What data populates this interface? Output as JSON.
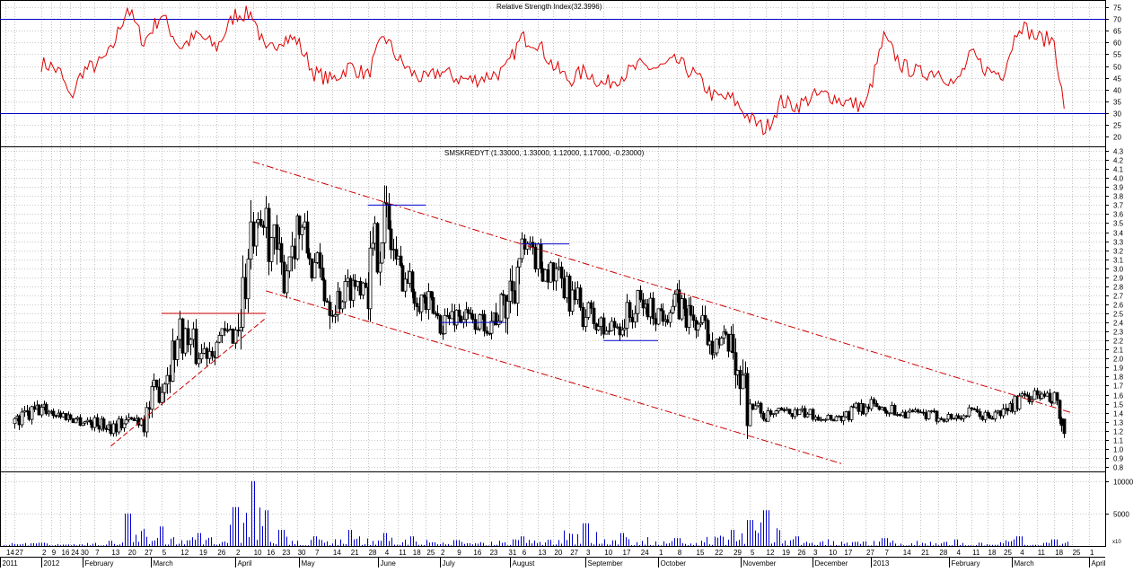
{
  "chart_data": [
    {
      "type": "line",
      "title": "Relative Strength Index(32.3996)",
      "ylim": [
        16,
        78
      ],
      "yticks": [
        20,
        25,
        30,
        35,
        40,
        45,
        50,
        55,
        60,
        65,
        70,
        75
      ],
      "reference_lines": [
        30,
        70
      ],
      "grid": true,
      "series": [
        {
          "color": "#e00000",
          "x": [
            "2012-01-02",
            "2012-01-09",
            "2012-01-16",
            "2012-01-23",
            "2012-02-01",
            "2012-02-08",
            "2012-02-13",
            "2012-02-20",
            "2012-02-27",
            "2012-03-05",
            "2012-03-12",
            "2012-03-19",
            "2012-03-26",
            "2012-04-02",
            "2012-04-10",
            "2012-04-16",
            "2012-04-23",
            "2012-04-30",
            "2012-05-07",
            "2012-05-14",
            "2012-05-21",
            "2012-05-28",
            "2012-06-04",
            "2012-06-11",
            "2012-06-18",
            "2012-06-25",
            "2012-07-02",
            "2012-07-09",
            "2012-07-16",
            "2012-07-23",
            "2012-07-30",
            "2012-08-06",
            "2012-08-13",
            "2012-08-20",
            "2012-08-27",
            "2012-09-03",
            "2012-09-10",
            "2012-09-17",
            "2012-09-24",
            "2012-10-01",
            "2012-10-08",
            "2012-10-15",
            "2012-10-22",
            "2012-10-29",
            "2012-11-05",
            "2012-11-12",
            "2012-11-19",
            "2012-11-26",
            "2012-12-03",
            "2012-12-10",
            "2012-12-17",
            "2012-12-27",
            "2013-01-07",
            "2013-01-14",
            "2013-01-21",
            "2013-01-28",
            "2013-02-04",
            "2013-02-11",
            "2013-02-18",
            "2013-02-25",
            "2013-03-04",
            "2013-03-11",
            "2013-03-18",
            "2013-03-22"
          ],
          "values": [
            51,
            50,
            47,
            36,
            48,
            51,
            56,
            75,
            60,
            72,
            58,
            63,
            58,
            72,
            72,
            55,
            62,
            61,
            47,
            44,
            50,
            46,
            63,
            53,
            47,
            44,
            48,
            45,
            44,
            46,
            48,
            62,
            60,
            50,
            44,
            48,
            42,
            46,
            50,
            49,
            52,
            46,
            37,
            36,
            28,
            23,
            35,
            33,
            37,
            38,
            35,
            33,
            62,
            50,
            47,
            48,
            42,
            55,
            48,
            47,
            68,
            62,
            61,
            32
          ]
        }
      ]
    },
    {
      "type": "candlestick",
      "title": "SMSKREDYT (1.33000, 1.33000, 1.12000, 1.17000, -0.23000)",
      "ylim": [
        0.75,
        4.35
      ],
      "yticks": [
        0.8,
        0.9,
        1.0,
        1.1,
        1.2,
        1.3,
        1.4,
        1.5,
        1.6,
        1.7,
        1.8,
        1.9,
        2.0,
        2.1,
        2.2,
        2.3,
        2.4,
        2.5,
        2.6,
        2.7,
        2.8,
        2.9,
        3.0,
        3.1,
        3.2,
        3.3,
        3.4,
        3.5,
        3.6,
        3.7,
        3.8,
        3.9,
        4.0,
        4.1,
        4.2,
        4.3
      ],
      "grid": true,
      "price_path": {
        "x": [
          "2011-12-12",
          "2012-01-02",
          "2012-01-16",
          "2012-01-30",
          "2012-02-13",
          "2012-02-27",
          "2012-03-05",
          "2012-03-12",
          "2012-03-19",
          "2012-03-26",
          "2012-04-02",
          "2012-04-10",
          "2012-04-16",
          "2012-04-23",
          "2012-04-30",
          "2012-05-07",
          "2012-05-14",
          "2012-05-21",
          "2012-05-28",
          "2012-06-04",
          "2012-06-11",
          "2012-06-18",
          "2012-06-25",
          "2012-07-02",
          "2012-07-09",
          "2012-07-16",
          "2012-07-23",
          "2012-07-30",
          "2012-08-06",
          "2012-08-13",
          "2012-08-20",
          "2012-08-27",
          "2012-09-03",
          "2012-09-10",
          "2012-09-17",
          "2012-09-24",
          "2012-10-01",
          "2012-10-08",
          "2012-10-15",
          "2012-10-22",
          "2012-10-29",
          "2012-11-05",
          "2012-11-12",
          "2012-11-19",
          "2012-11-26",
          "2012-12-03",
          "2012-12-10",
          "2012-12-17",
          "2012-12-27",
          "2013-01-07",
          "2013-01-14",
          "2013-01-21",
          "2013-01-28",
          "2013-02-04",
          "2013-02-11",
          "2013-02-18",
          "2013-02-25",
          "2013-03-04",
          "2013-03-11",
          "2013-03-18",
          "2013-03-22"
        ],
        "close": [
          1.28,
          1.45,
          1.38,
          1.32,
          1.25,
          1.35,
          1.75,
          2.3,
          2.05,
          2.2,
          2.3,
          3.3,
          3.5,
          2.9,
          3.5,
          3.0,
          2.6,
          2.8,
          2.9,
          3.6,
          3.0,
          2.8,
          2.6,
          2.4,
          2.5,
          2.4,
          2.4,
          2.6,
          3.2,
          3.1,
          2.9,
          2.7,
          2.5,
          2.3,
          2.4,
          2.6,
          2.5,
          2.6,
          2.4,
          2.2,
          2.1,
          1.5,
          1.35,
          1.4,
          1.4,
          1.38,
          1.35,
          1.35,
          1.5,
          1.45,
          1.4,
          1.38,
          1.35,
          1.35,
          1.4,
          1.35,
          1.4,
          1.55,
          1.6,
          1.5,
          1.17
        ]
      },
      "annotations": {
        "channel_upper": [
          [
            "2012-04-10",
            4.18
          ],
          [
            "2013-03-25",
            1.4
          ]
        ],
        "channel_lower": [
          [
            "2012-04-16",
            2.75
          ],
          [
            "2012-12-17",
            0.83
          ]
        ],
        "support_triangle": [
          [
            "2012-02-13",
            1.03
          ],
          [
            "2012-04-16",
            2.45
          ]
        ],
        "resistance_triangle": [
          [
            "2012-03-05",
            2.5
          ],
          [
            "2012-04-16",
            2.5
          ]
        ],
        "levels": [
          {
            "from": "2012-05-28",
            "to": "2012-06-25",
            "value": 3.7
          },
          {
            "from": "2012-07-02",
            "to": "2012-07-30",
            "value": 2.4
          },
          {
            "from": "2012-08-06",
            "to": "2012-08-27",
            "value": 3.27
          },
          {
            "from": "2012-09-10",
            "to": "2012-10-01",
            "value": 2.2
          }
        ]
      }
    },
    {
      "type": "bar",
      "title": "",
      "ylim": [
        0,
        11500
      ],
      "yticks": [
        5000,
        10000
      ],
      "unit_label": "x10",
      "volume_profile": {
        "x": [
          "2012-01-02",
          "2012-02-13",
          "2012-02-20",
          "2012-03-05",
          "2012-03-19",
          "2012-04-02",
          "2012-04-10",
          "2012-04-16",
          "2012-04-23",
          "2012-05-07",
          "2012-05-21",
          "2012-06-04",
          "2012-06-18",
          "2012-07-09",
          "2012-08-06",
          "2012-09-03",
          "2012-09-17",
          "2012-10-08",
          "2012-10-29",
          "2012-11-05",
          "2012-11-12",
          "2012-11-26",
          "2013-01-07",
          "2013-02-04",
          "2013-03-04",
          "2013-03-18"
        ],
        "level": [
          500,
          800,
          5000,
          3000,
          2000,
          6000,
          10000,
          5500,
          2500,
          1500,
          2500,
          2000,
          1500,
          900,
          1500,
          3500,
          2000,
          1200,
          2500,
          4000,
          5500,
          1500,
          1200,
          1000,
          1500,
          1000
        ]
      }
    }
  ],
  "x_axis": {
    "day_labels": [
      {
        "d": "2011-12-05",
        "t": "14"
      },
      {
        "d": "2011-12-12",
        "t": "27"
      },
      {
        "d": "2012-01-02",
        "t": "2"
      },
      {
        "d": "2012-01-09",
        "t": "9"
      },
      {
        "d": "2012-01-16",
        "t": "16"
      },
      {
        "d": "2012-01-23",
        "t": "24"
      },
      {
        "d": "2012-01-30",
        "t": "30"
      },
      {
        "d": "2012-02-06",
        "t": "7"
      },
      {
        "d": "2012-02-13",
        "t": "13"
      },
      {
        "d": "2012-02-20",
        "t": "20"
      },
      {
        "d": "2012-02-27",
        "t": "27"
      },
      {
        "d": "2012-03-05",
        "t": "5"
      },
      {
        "d": "2012-03-12",
        "t": "12"
      },
      {
        "d": "2012-03-19",
        "t": "19"
      },
      {
        "d": "2012-03-26",
        "t": "26"
      },
      {
        "d": "2012-04-02",
        "t": "2"
      },
      {
        "d": "2012-04-10",
        "t": "10"
      },
      {
        "d": "2012-04-16",
        "t": "16"
      },
      {
        "d": "2012-04-23",
        "t": "23"
      },
      {
        "d": "2012-04-30",
        "t": "30"
      },
      {
        "d": "2012-05-07",
        "t": "7"
      },
      {
        "d": "2012-05-14",
        "t": "14"
      },
      {
        "d": "2012-05-21",
        "t": "21"
      },
      {
        "d": "2012-05-28",
        "t": "28"
      },
      {
        "d": "2012-06-04",
        "t": "4"
      },
      {
        "d": "2012-06-11",
        "t": "11"
      },
      {
        "d": "2012-06-18",
        "t": "18"
      },
      {
        "d": "2012-06-25",
        "t": "25"
      },
      {
        "d": "2012-07-02",
        "t": "2"
      },
      {
        "d": "2012-07-09",
        "t": "9"
      },
      {
        "d": "2012-07-16",
        "t": "16"
      },
      {
        "d": "2012-07-23",
        "t": "23"
      },
      {
        "d": "2012-07-31",
        "t": "31"
      },
      {
        "d": "2012-08-06",
        "t": "6"
      },
      {
        "d": "2012-08-13",
        "t": "13"
      },
      {
        "d": "2012-08-20",
        "t": "20"
      },
      {
        "d": "2012-08-27",
        "t": "27"
      },
      {
        "d": "2012-09-03",
        "t": "3"
      },
      {
        "d": "2012-09-10",
        "t": "10"
      },
      {
        "d": "2012-09-17",
        "t": "17"
      },
      {
        "d": "2012-09-24",
        "t": "24"
      },
      {
        "d": "2012-10-01",
        "t": "1"
      },
      {
        "d": "2012-10-08",
        "t": "8"
      },
      {
        "d": "2012-10-15",
        "t": "15"
      },
      {
        "d": "2012-10-22",
        "t": "22"
      },
      {
        "d": "2012-10-29",
        "t": "29"
      },
      {
        "d": "2012-11-05",
        "t": "5"
      },
      {
        "d": "2012-11-12",
        "t": "12"
      },
      {
        "d": "2012-11-19",
        "t": "19"
      },
      {
        "d": "2012-11-26",
        "t": "26"
      },
      {
        "d": "2012-12-03",
        "t": "3"
      },
      {
        "d": "2012-12-10",
        "t": "10"
      },
      {
        "d": "2012-12-17",
        "t": "17"
      },
      {
        "d": "2012-12-27",
        "t": "27"
      },
      {
        "d": "2013-01-07",
        "t": "7"
      },
      {
        "d": "2013-01-14",
        "t": "14"
      },
      {
        "d": "2013-01-21",
        "t": "21"
      },
      {
        "d": "2013-01-28",
        "t": "28"
      },
      {
        "d": "2013-02-04",
        "t": "4"
      },
      {
        "d": "2013-02-11",
        "t": "11"
      },
      {
        "d": "2013-02-18",
        "t": "18"
      },
      {
        "d": "2013-02-25",
        "t": "25"
      },
      {
        "d": "2013-03-04",
        "t": "4"
      },
      {
        "d": "2013-03-11",
        "t": "11"
      },
      {
        "d": "2013-03-18",
        "t": "18"
      },
      {
        "d": "2013-03-25",
        "t": "25"
      },
      {
        "d": "2013-04-01",
        "t": "1"
      }
    ],
    "month_labels": [
      {
        "d": "2011-12-01",
        "t": "2011"
      },
      {
        "d": "2012-01-02",
        "t": "2012"
      },
      {
        "d": "2012-02-01",
        "t": "February"
      },
      {
        "d": "2012-03-01",
        "t": "March"
      },
      {
        "d": "2012-04-02",
        "t": "April"
      },
      {
        "d": "2012-05-01",
        "t": "May"
      },
      {
        "d": "2012-06-01",
        "t": "June"
      },
      {
        "d": "2012-07-02",
        "t": "July"
      },
      {
        "d": "2012-08-01",
        "t": "August"
      },
      {
        "d": "2012-09-03",
        "t": "September"
      },
      {
        "d": "2012-10-01",
        "t": "October"
      },
      {
        "d": "2012-11-01",
        "t": "November"
      },
      {
        "d": "2012-12-03",
        "t": "December"
      },
      {
        "d": "2013-01-02",
        "t": "2013"
      },
      {
        "d": "2013-02-01",
        "t": "February"
      },
      {
        "d": "2013-03-01",
        "t": "March"
      },
      {
        "d": "2013-04-01",
        "t": "April"
      }
    ]
  },
  "colors": {
    "frame": "#000000",
    "grid": "#9a9a9a",
    "rsi_line": "#e00000",
    "reference": "#0000cc",
    "trend": "#cc0000",
    "level": "#0000cc",
    "volume": "#0000cc",
    "candle": "#000000"
  }
}
